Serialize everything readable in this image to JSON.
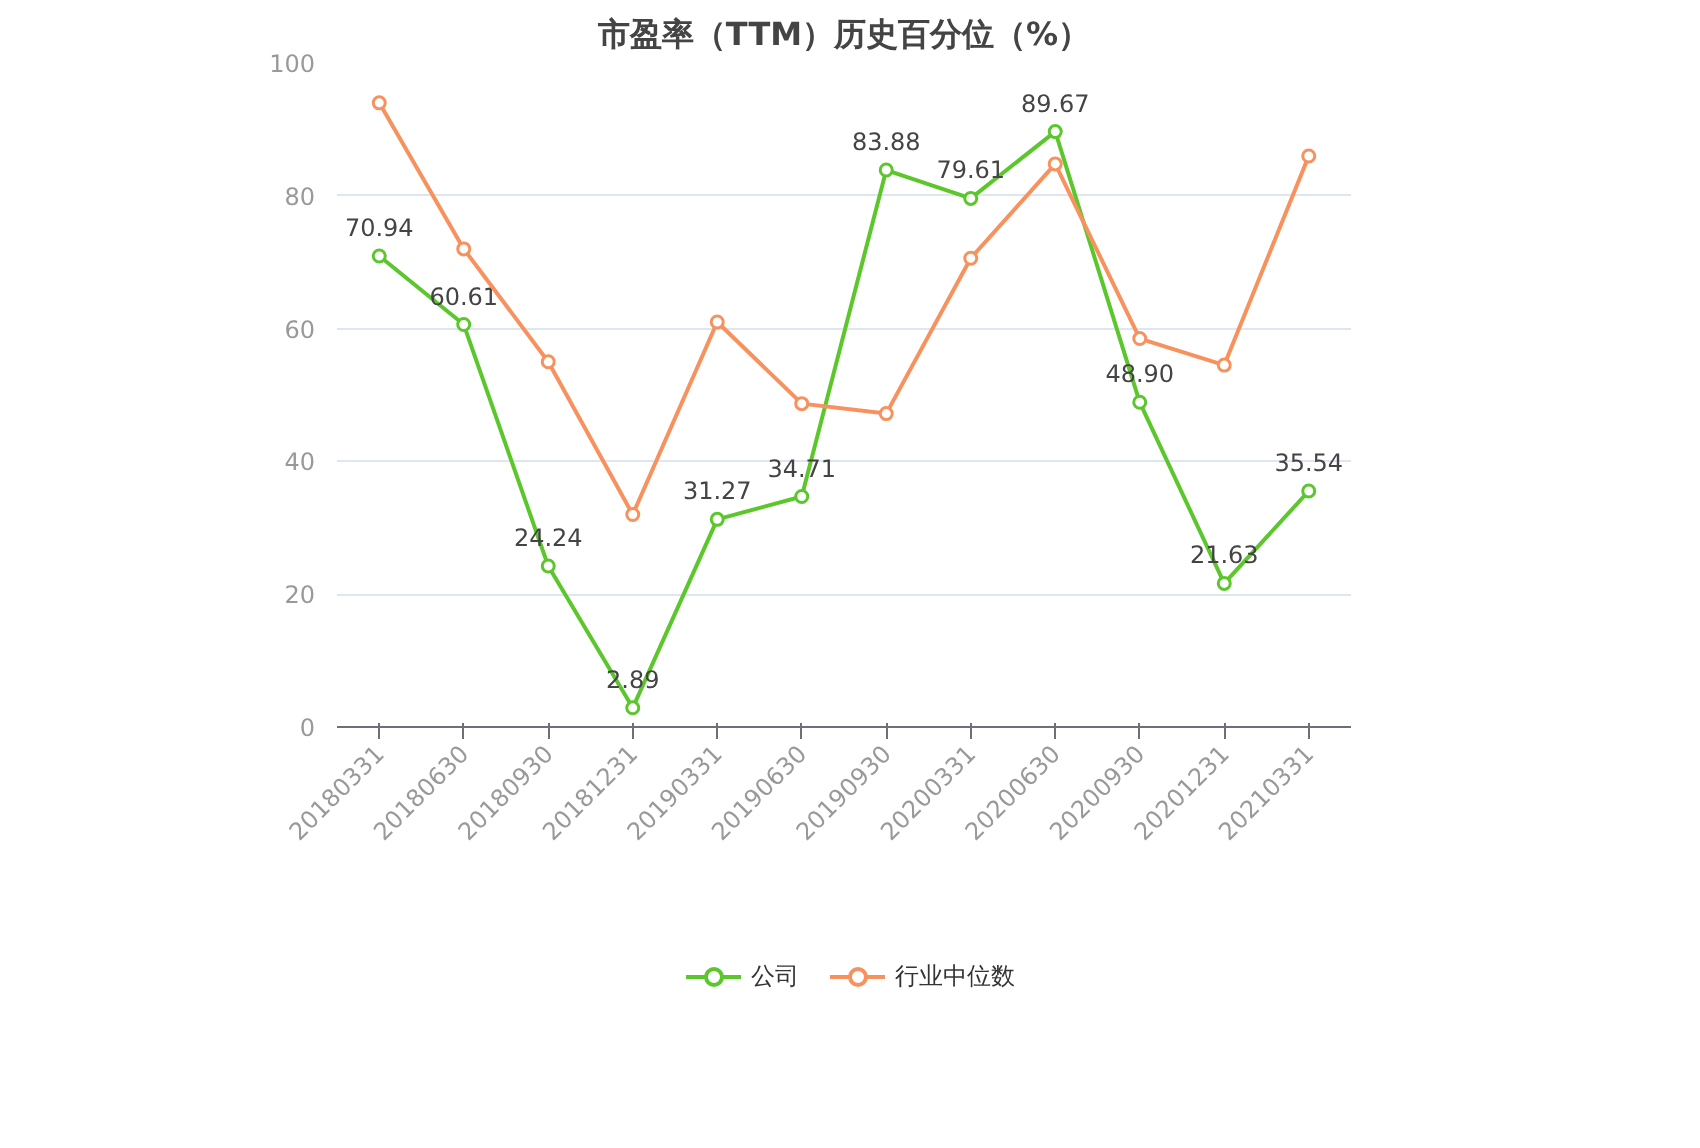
{
  "chart_data": {
    "type": "line",
    "title": "市盈率（TTM）历史百分位（%）",
    "categories": [
      "20180331",
      "20180630",
      "20180930",
      "20181231",
      "20190331",
      "20190630",
      "20190930",
      "20200331",
      "20200630",
      "20200930",
      "20201231",
      "20210331"
    ],
    "series": [
      {
        "name": "公司",
        "color": "#5cc72c",
        "values": [
          70.94,
          60.61,
          24.24,
          2.89,
          31.27,
          34.71,
          83.88,
          79.61,
          89.67,
          48.9,
          21.63,
          35.54
        ],
        "value_labels": [
          "70.94",
          "60.61",
          "24.24",
          "2.89",
          "31.27",
          "34.71",
          "83.88",
          "79.61",
          "89.67",
          "48.90",
          "21.63",
          "35.54"
        ]
      },
      {
        "name": "行业中位数",
        "color": "#f7925e",
        "values": [
          94,
          72,
          55,
          32,
          61,
          48.7,
          47.2,
          70.6,
          84.8,
          58.5,
          54.5,
          86
        ]
      }
    ],
    "ylim": [
      0,
      100
    ],
    "yticks": [
      0,
      20,
      40,
      60,
      80,
      100
    ],
    "grid": "y",
    "legend": "bottom",
    "marker": "circle",
    "line_style": "solid"
  }
}
